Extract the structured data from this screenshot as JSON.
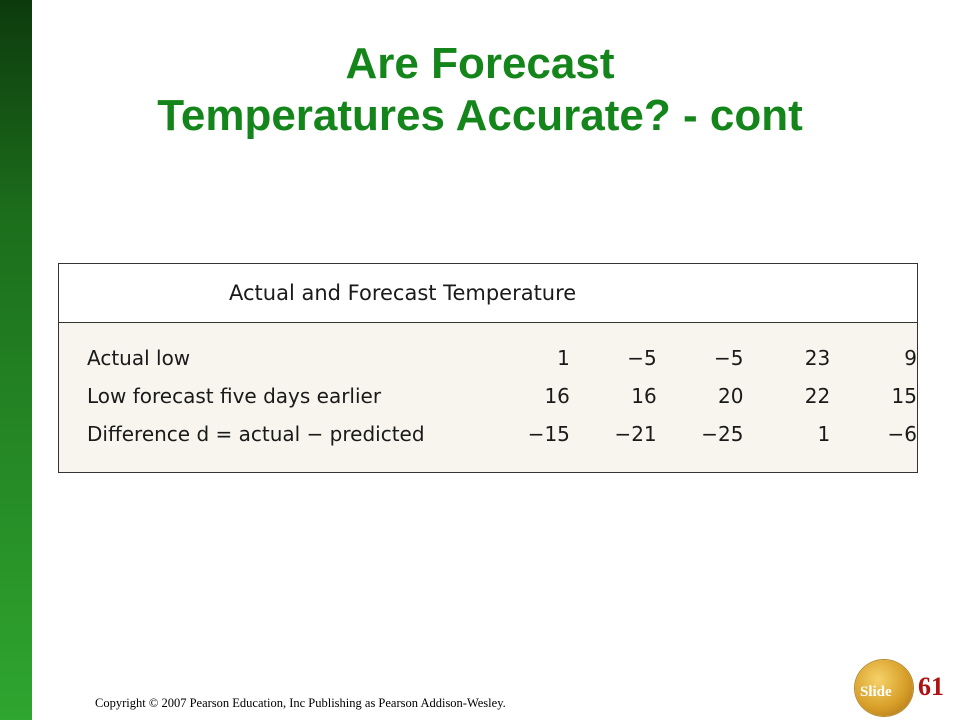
{
  "slide": {
    "title_line1": "Are Forecast",
    "title_line2": "Temperatures Accurate? - cont",
    "footer": "Copyright © 2007 Pearson Education, Inc Publishing as Pearson Addison-Wesley.",
    "slide_label": "Slide",
    "slide_number": "61",
    "accent_color": "#14851a"
  },
  "table": {
    "title": "Actual and Forecast Temperature",
    "rows": [
      {
        "label": "Actual low",
        "values": [
          "1",
          "−5",
          "−5",
          "23",
          "9"
        ]
      },
      {
        "label": "Low forecast five days earlier",
        "values": [
          "16",
          "16",
          "20",
          "22",
          "15"
        ]
      },
      {
        "label": "Difference d = actual − predicted",
        "values": [
          "−15",
          "−21",
          "−25",
          "1",
          "−6"
        ]
      }
    ]
  }
}
